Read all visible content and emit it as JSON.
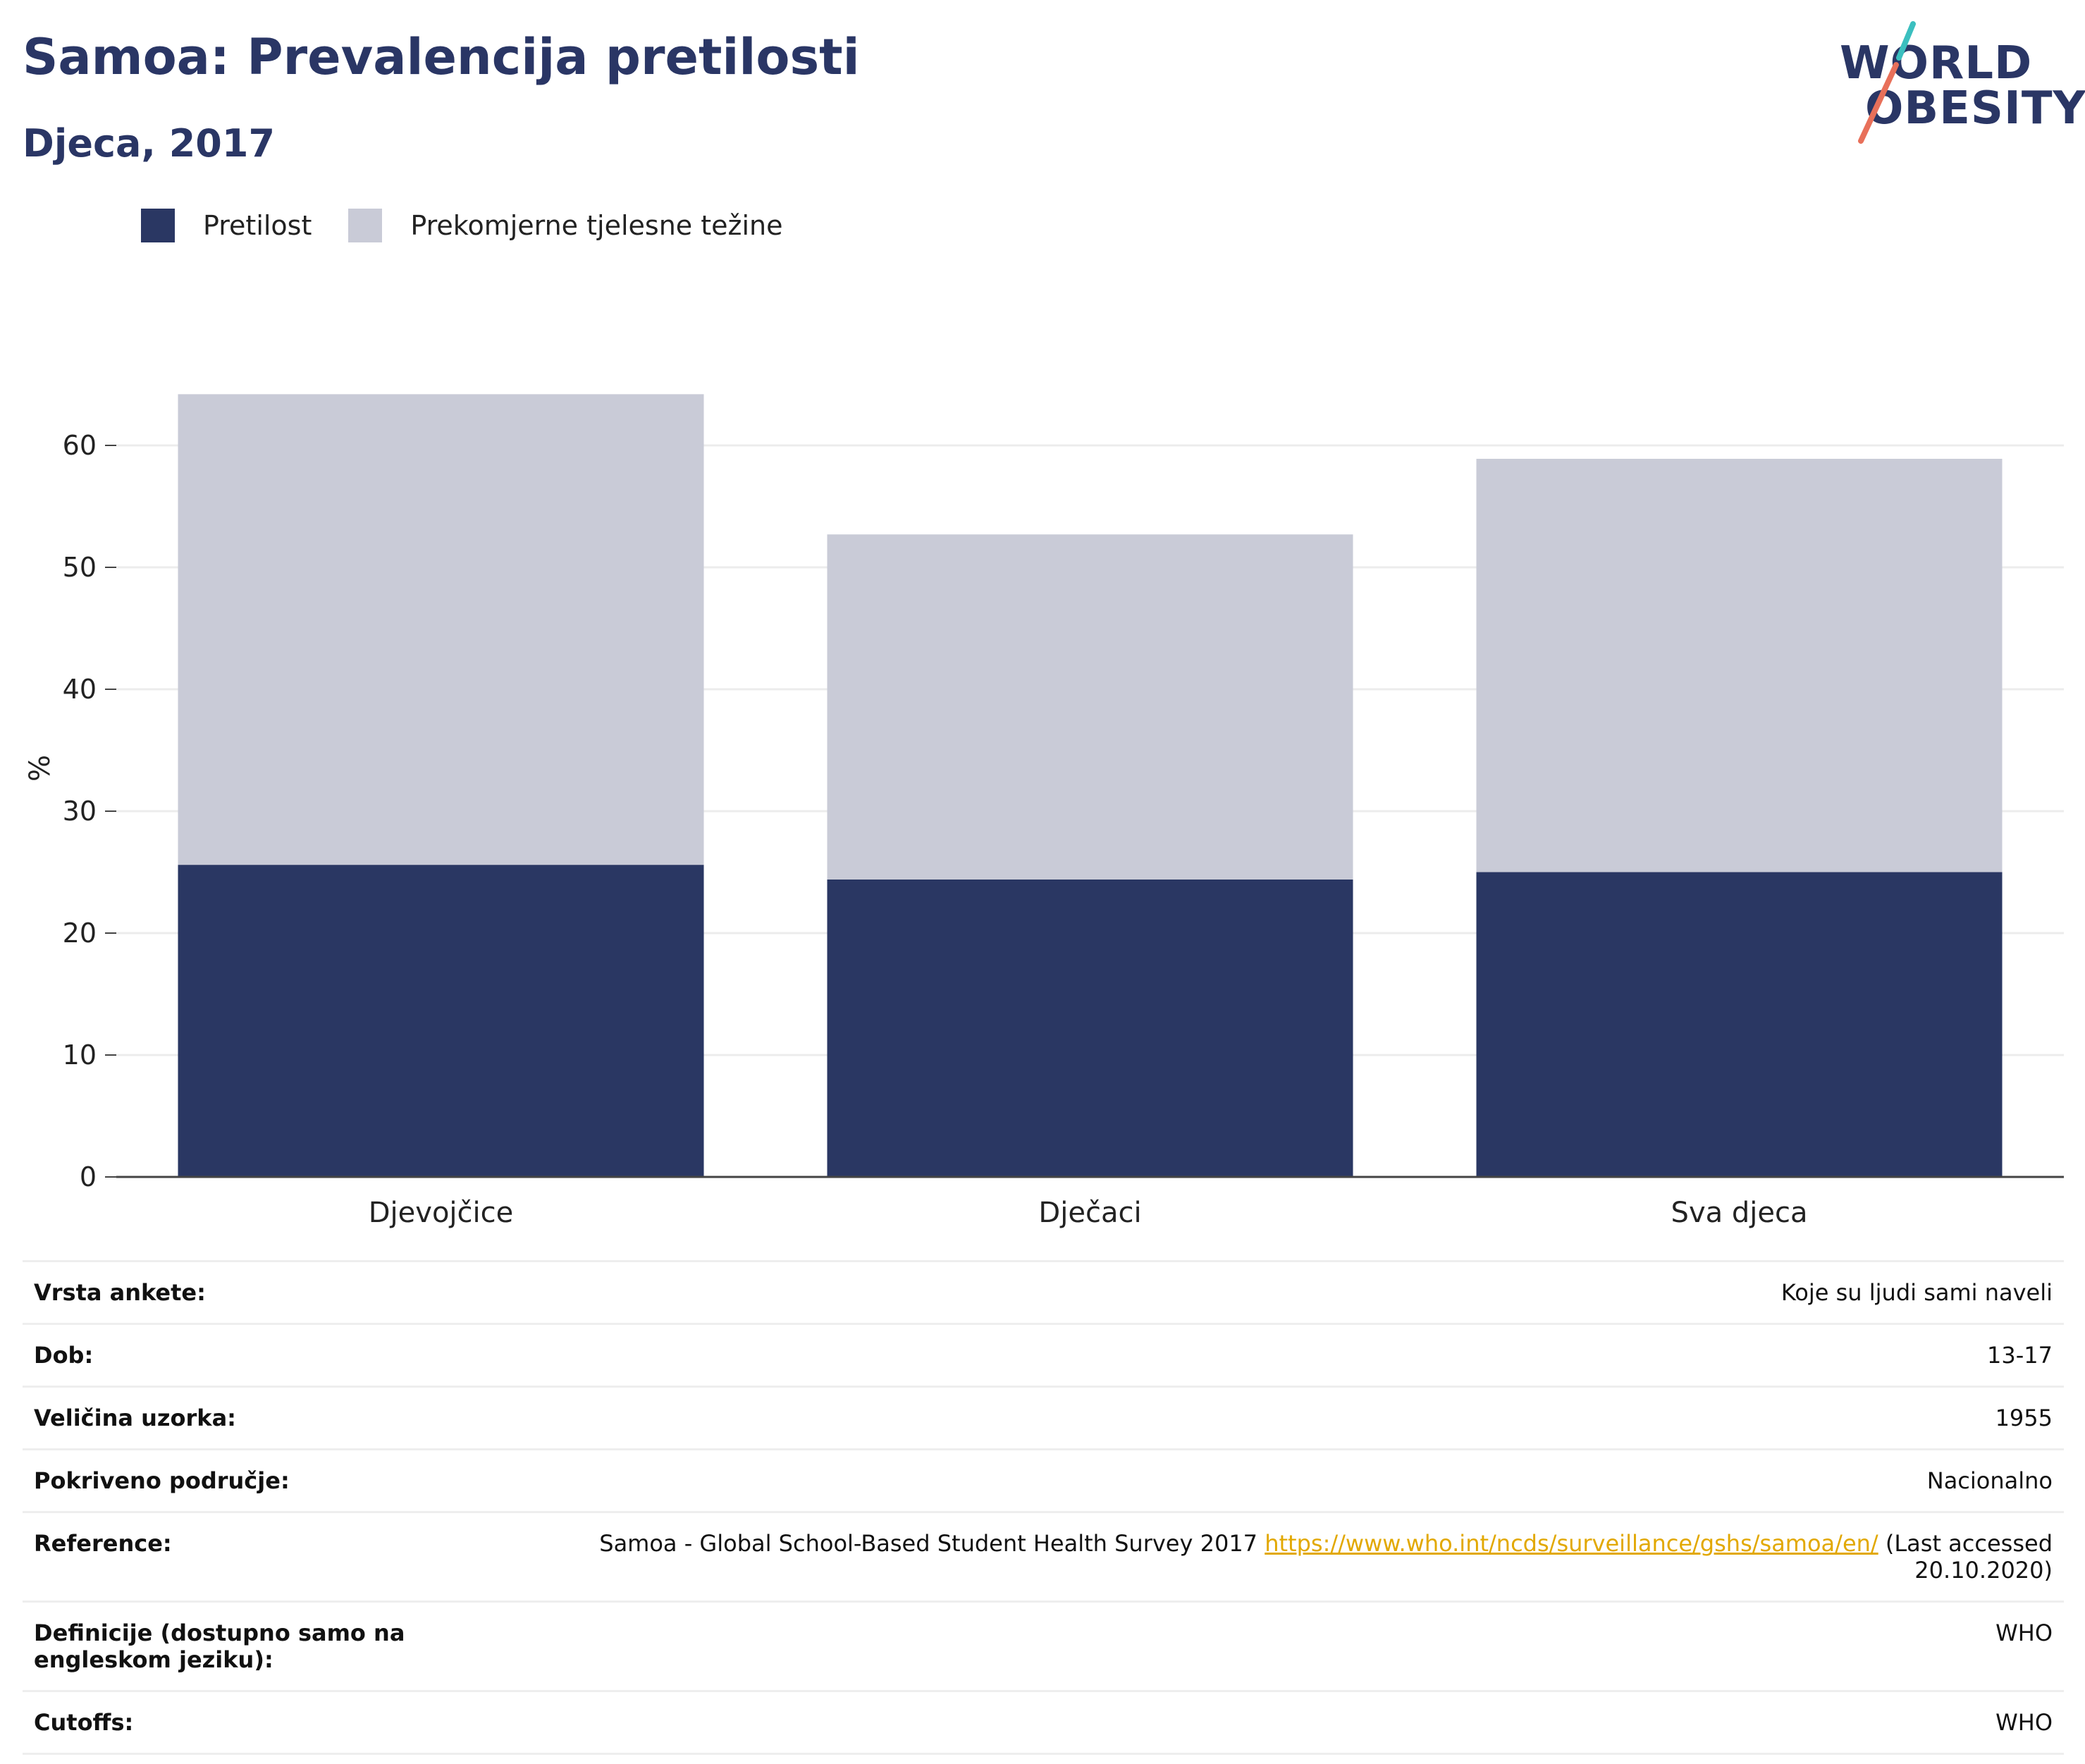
{
  "header": {
    "title": "Samoa: Prevalencija pretilosti",
    "subtitle": "Djeca, 2017"
  },
  "logo": {
    "line1": "WORLD",
    "line2": "OBESITY",
    "accent_teal": "#3bbfbf",
    "accent_coral": "#e8705a"
  },
  "legend": [
    {
      "label": "Pretilost",
      "color": "#2a3763"
    },
    {
      "label": "Prekomjerne tjelesne težine",
      "color": "#c9cbd7"
    }
  ],
  "chart_data": {
    "type": "bar",
    "stacked": true,
    "categories": [
      "Djevojčice",
      "Dječaci",
      "Sva djeca"
    ],
    "series": [
      {
        "name": "Pretilost",
        "values": [
          25.6,
          24.4,
          25.0
        ],
        "color": "#2a3763"
      },
      {
        "name": "Prekomjerne tjelesne težine",
        "values": [
          38.6,
          28.3,
          33.9
        ],
        "color": "#c9cbd7"
      }
    ],
    "ylabel": "%",
    "ylim": [
      0,
      70
    ],
    "yticks": [
      0,
      10,
      20,
      30,
      40,
      50,
      60
    ],
    "grid": true,
    "legend_position": "top-left"
  },
  "info": [
    {
      "key": "Vrsta ankete:",
      "value": "Koje su ljudi sami naveli"
    },
    {
      "key": "Dob:",
      "value": "13-17"
    },
    {
      "key": "Veličina uzorka:",
      "value": "1955"
    },
    {
      "key": "Pokriveno područje:",
      "value": "Nacionalno"
    },
    {
      "key": "Reference:",
      "value": "Samoa - Global School-Based Student Health Survey 2017",
      "link": "https://www.who.int/ncds/surveillance/gshs/samoa/en/",
      "suffix": "(Last accessed 20.10.2020)"
    },
    {
      "key": "Definicije (dostupno samo na engleskom jeziku):",
      "value": "WHO"
    },
    {
      "key": "Cutoffs:",
      "value": "WHO"
    }
  ]
}
